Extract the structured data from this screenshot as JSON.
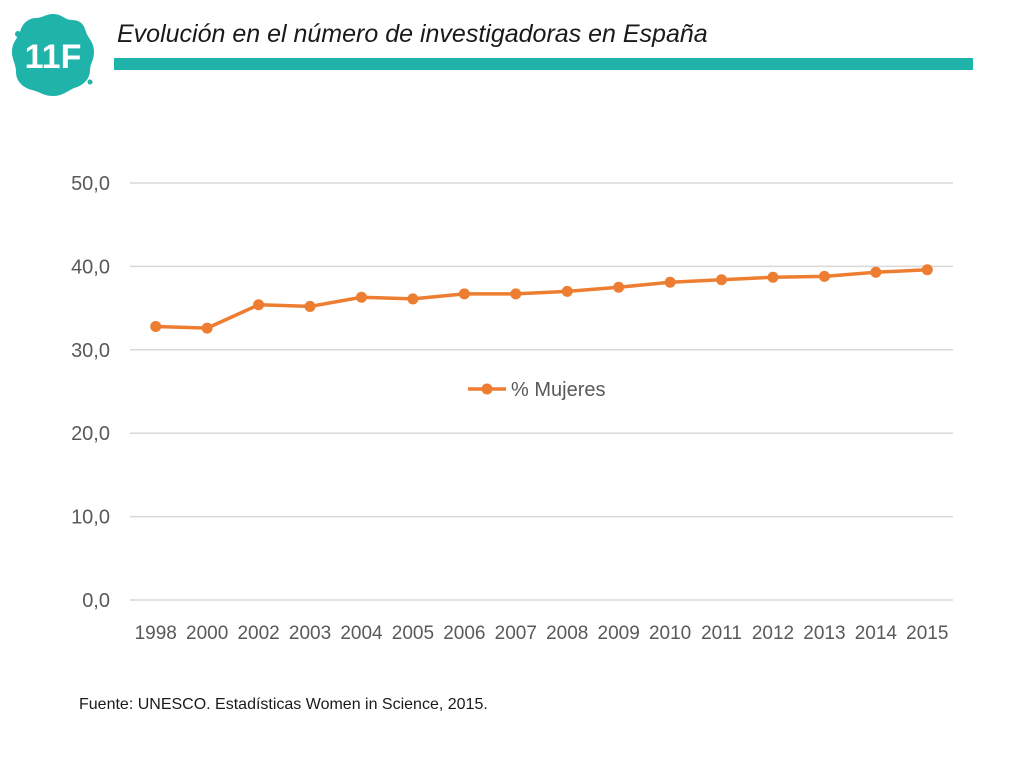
{
  "header": {
    "logo_text": "11F",
    "title": "Evolución en el número de investigadoras en España"
  },
  "colors": {
    "accent": "#1fb3aa",
    "series": "#ed7d31",
    "grid": "#d9d9d9",
    "tick_text": "#595959"
  },
  "chart_data": {
    "type": "line",
    "title": "",
    "xlabel": "",
    "ylabel": "",
    "categories": [
      "1998",
      "2000",
      "2002",
      "2003",
      "2004",
      "2005",
      "2006",
      "2007",
      "2008",
      "2009",
      "2010",
      "2011",
      "2012",
      "2013",
      "2014",
      "2015"
    ],
    "series": [
      {
        "name": "% Mujeres",
        "values": [
          32.8,
          32.6,
          35.4,
          35.2,
          36.3,
          36.1,
          36.7,
          36.7,
          37.0,
          37.5,
          38.1,
          38.4,
          38.7,
          38.8,
          39.3,
          39.6
        ]
      }
    ],
    "ylim": [
      0,
      50
    ],
    "yticks": [
      "0,0",
      "10,0",
      "20,0",
      "30,0",
      "40,0",
      "50,0"
    ],
    "grid": true,
    "legend": "inside-center"
  },
  "footer": {
    "source": "Fuente: UNESCO. Estadísticas Women in Science, 2015."
  }
}
